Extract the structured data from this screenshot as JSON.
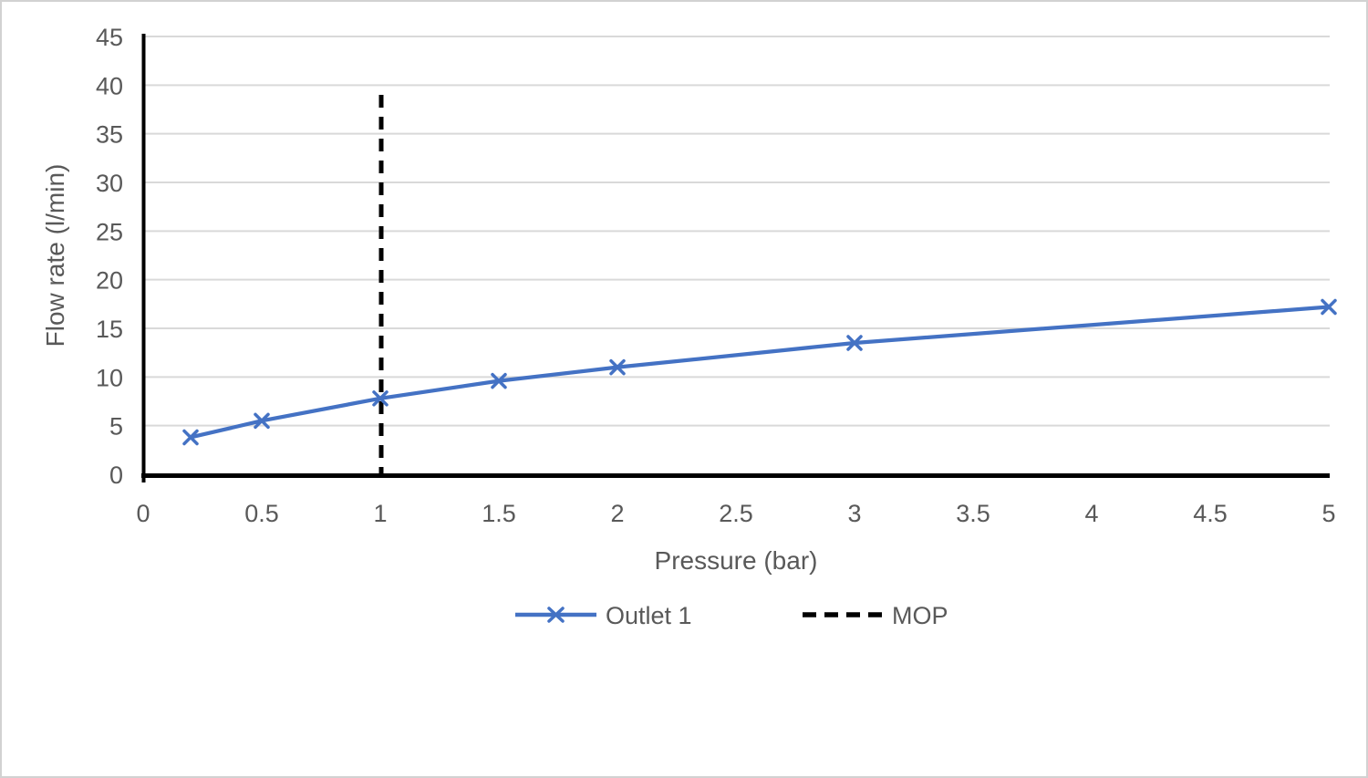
{
  "chart_data": {
    "type": "line",
    "title": "",
    "xlabel": "Pressure (bar)",
    "ylabel": "Flow rate (l/min)",
    "xlim": [
      0,
      5
    ],
    "ylim": [
      0,
      45
    ],
    "x_ticks": [
      0,
      0.5,
      1,
      1.5,
      2,
      2.5,
      3,
      3.5,
      4,
      4.5,
      5
    ],
    "y_ticks": [
      0,
      5,
      10,
      15,
      20,
      25,
      30,
      35,
      40,
      45
    ],
    "grid": "horizontal",
    "legend_position": "bottom",
    "series": [
      {
        "name": "Outlet 1",
        "marker": "x",
        "points": [
          [
            0.2,
            3.8
          ],
          [
            0.5,
            5.5
          ],
          [
            1,
            7.8
          ],
          [
            1.5,
            9.6
          ],
          [
            2,
            11
          ],
          [
            3,
            13.5
          ],
          [
            5,
            17.2
          ]
        ]
      }
    ],
    "mop": {
      "name": "MOP",
      "style": "vertical-dashed",
      "x": 1,
      "y_span": [
        0,
        39
      ]
    },
    "colors": {
      "series": "#4472C4",
      "mop": "#000000",
      "grid": "#D9D9D9",
      "axis": "#000000",
      "text": "#595959"
    }
  }
}
